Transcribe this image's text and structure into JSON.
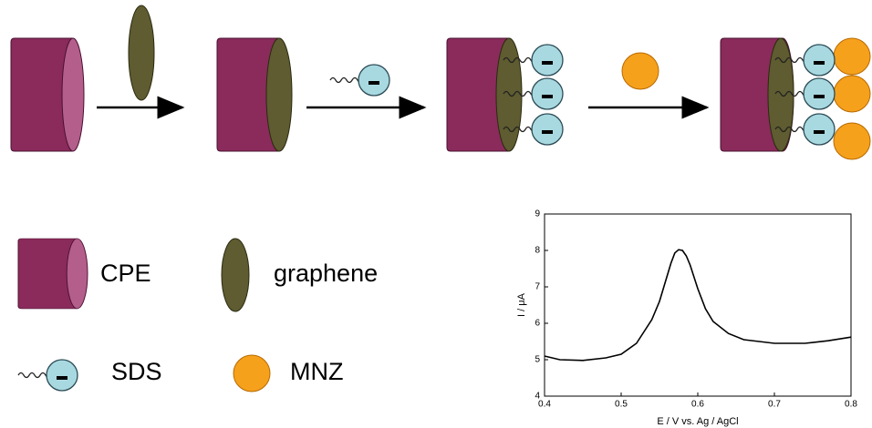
{
  "legend": {
    "cpe": "CPE",
    "graphene": "graphene",
    "sds": "SDS",
    "mnz": "MNZ"
  },
  "chart_data": {
    "type": "line",
    "x_label": "E / V vs. Ag / AgCl",
    "y_label": "I / μA",
    "xlim": [
      0.4,
      0.8
    ],
    "ylim": [
      4,
      9
    ],
    "xticks": [
      0.4,
      0.5,
      0.6,
      0.7,
      0.8
    ],
    "yticks": [
      4,
      5,
      6,
      7,
      8,
      9
    ],
    "series": [
      {
        "color": "#000000",
        "x": [
          0.4,
          0.42,
          0.45,
          0.48,
          0.5,
          0.52,
          0.54,
          0.55,
          0.56,
          0.565,
          0.57,
          0.575,
          0.58,
          0.585,
          0.59,
          0.6,
          0.61,
          0.62,
          0.64,
          0.66,
          0.7,
          0.74,
          0.77,
          0.8
        ],
        "values": [
          5.1,
          5.0,
          4.98,
          5.05,
          5.15,
          5.45,
          6.1,
          6.6,
          7.3,
          7.65,
          7.93,
          8.02,
          8.0,
          7.85,
          7.6,
          6.95,
          6.4,
          6.05,
          5.72,
          5.55,
          5.45,
          5.45,
          5.52,
          5.62
        ]
      }
    ]
  }
}
